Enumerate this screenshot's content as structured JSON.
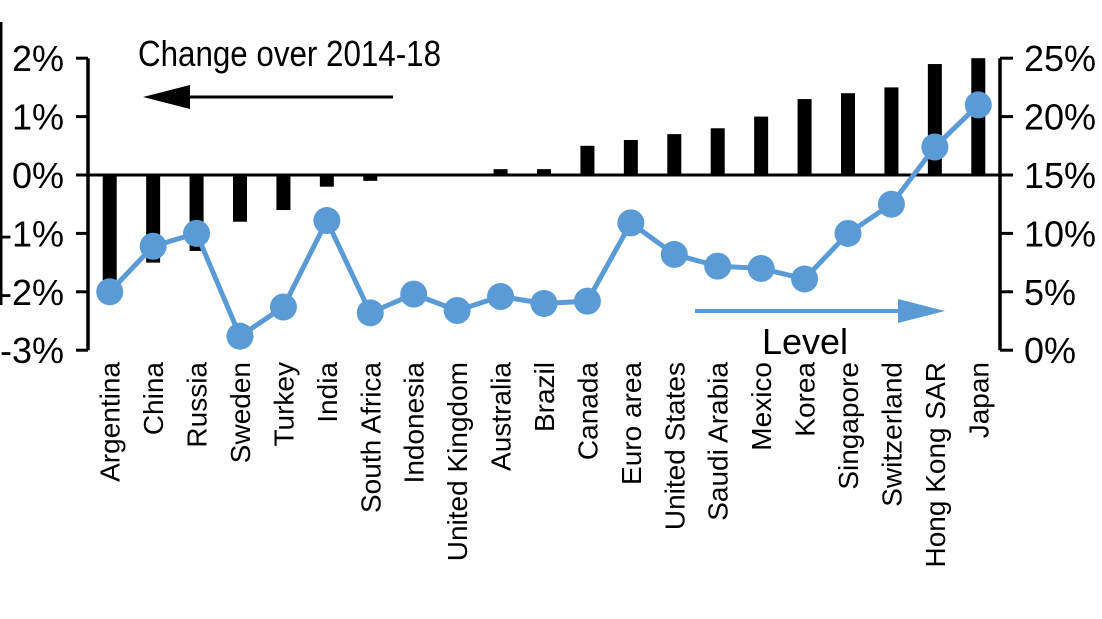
{
  "chart_data": {
    "type": "bar",
    "subtype": "combo-bar-line",
    "background": "#ffffff",
    "grid": false,
    "categories": [
      "Argentina",
      "China",
      "Russia",
      "Sweden",
      "Turkey",
      "India",
      "South Africa",
      "Indonesia",
      "United Kingdom",
      "Australia",
      "Brazil",
      "Canada",
      "Euro area",
      "United States",
      "Saudi Arabia",
      "Mexico",
      "Korea",
      "Singapore",
      "Switzerland",
      "Hong Kong SAR",
      "Japan"
    ],
    "series": [
      {
        "name": "Change over 2014-18",
        "type": "bar",
        "axis": "left",
        "unit": "%",
        "color": "#000000",
        "values": [
          -1.8,
          -1.5,
          -1.3,
          -0.8,
          -0.6,
          -0.2,
          -0.1,
          0.0,
          0.0,
          0.1,
          0.1,
          0.5,
          0.6,
          0.7,
          0.8,
          1.0,
          1.3,
          1.4,
          1.5,
          1.9,
          2.0
        ]
      },
      {
        "name": "Level",
        "type": "line",
        "axis": "right",
        "unit": "%",
        "color": "#5B9BD5",
        "values": [
          5.0,
          8.9,
          10.0,
          1.2,
          3.7,
          11.1,
          3.2,
          4.8,
          3.4,
          4.6,
          4.0,
          4.2,
          10.9,
          8.2,
          7.2,
          7.0,
          6.1,
          10.0,
          12.5,
          17.4,
          21.0
        ]
      }
    ],
    "left_axis": {
      "min": -3,
      "max": 2,
      "tick_values": [
        2,
        1,
        0,
        -1,
        -2,
        -3
      ],
      "tick_labels": [
        "2%",
        "1%",
        "0%",
        "-1%",
        "-2%",
        "-3%"
      ]
    },
    "right_axis": {
      "min": 0,
      "max": 25,
      "tick_values": [
        25,
        20,
        15,
        10,
        5,
        0
      ],
      "tick_labels": [
        "25%",
        "20%",
        "15%",
        "10%",
        "5%",
        "0%"
      ]
    },
    "annotations": {
      "bar_series_label": "Change over 2014-18",
      "bar_arrow_direction": "left",
      "line_series_label": "Level",
      "line_arrow_direction": "right"
    }
  }
}
